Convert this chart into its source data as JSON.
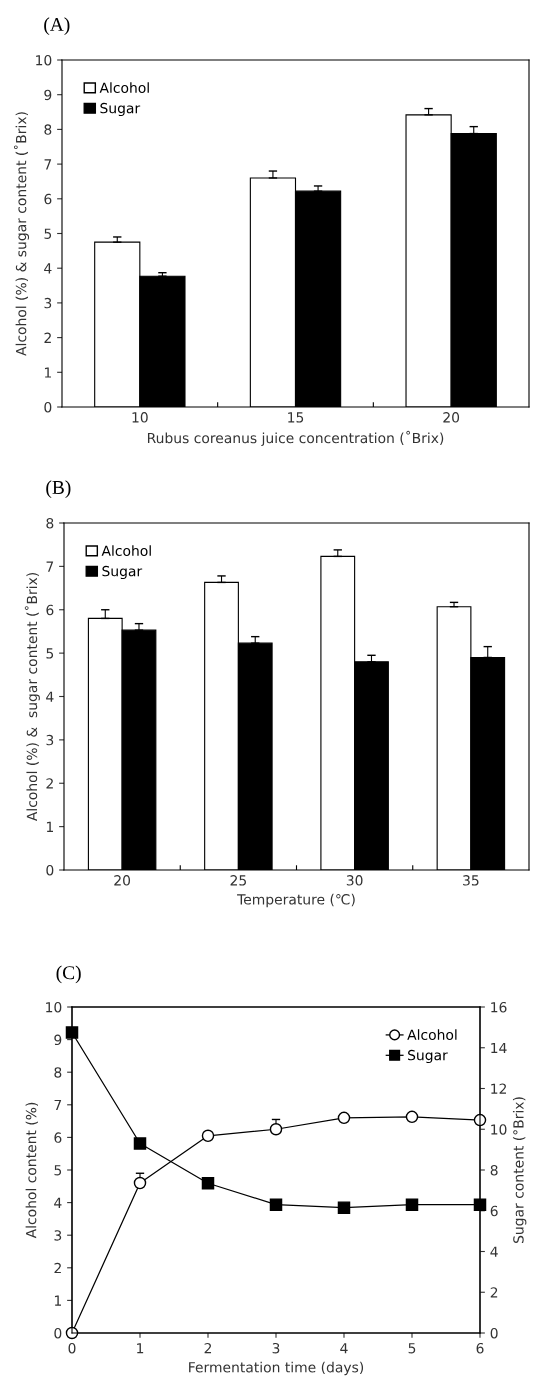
{
  "chart_data": [
    {
      "type": "bar",
      "title": "(A)",
      "xlabel": "Rubus coreanus juice concentration (˚Brix)",
      "ylabel": "Alcohol (%) & sugar content (˚Brix)",
      "categories": [
        "10",
        "15",
        "20"
      ],
      "ylim": [
        0,
        10
      ],
      "yticks": [
        0,
        1,
        2,
        3,
        4,
        5,
        6,
        7,
        8,
        9,
        10
      ],
      "legend": "top left",
      "grid": false,
      "series": [
        {
          "name": "Alcohol",
          "color": "#ffffff",
          "values": [
            4.75,
            6.6,
            8.42
          ],
          "errors": [
            [
              4.75,
              4.9
            ],
            [
              6.6,
              6.8
            ],
            [
              8.42,
              8.6
            ]
          ]
        },
        {
          "name": "Sugar",
          "color": "#000000",
          "values": [
            3.77,
            6.22,
            7.88
          ],
          "errors": [
            [
              3.77,
              3.87
            ],
            [
              6.22,
              6.37
            ],
            [
              7.88,
              8.08
            ]
          ]
        }
      ]
    },
    {
      "type": "bar",
      "title": "(B)",
      "xlabel": "Temperature (℃)",
      "ylabel": "Alcohol (%) &  sugar content (˚Brix)",
      "categories": [
        "20",
        "25",
        "30",
        "35"
      ],
      "ylim": [
        0,
        8
      ],
      "yticks": [
        0,
        1,
        2,
        3,
        4,
        5,
        6,
        7,
        8
      ],
      "legend": "top left",
      "grid": false,
      "series": [
        {
          "name": "Alcohol",
          "color": "#ffffff",
          "values": [
            5.8,
            6.63,
            7.23,
            6.07
          ],
          "errors": [
            [
              5.8,
              6.0
            ],
            [
              6.63,
              6.78
            ],
            [
              7.23,
              7.38
            ],
            [
              6.07,
              6.17
            ]
          ]
        },
        {
          "name": "Sugar",
          "color": "#000000",
          "values": [
            5.53,
            5.23,
            4.8,
            4.9
          ],
          "errors": [
            [
              5.53,
              5.68
            ],
            [
              5.23,
              5.38
            ],
            [
              4.8,
              4.95
            ],
            [
              4.9,
              5.15
            ]
          ]
        }
      ]
    },
    {
      "type": "line",
      "title": "(C)",
      "xlabel": "Fermentation time (days)",
      "ylabel": "Alcohol content (%)",
      "y2label": "Sugar content (°Brix)",
      "x": [
        0,
        1,
        2,
        3,
        4,
        5,
        6
      ],
      "xlim": [
        0,
        6
      ],
      "xticks": [
        0,
        1,
        2,
        3,
        4,
        5,
        6
      ],
      "ylim": [
        0,
        10
      ],
      "yticks": [
        0,
        1,
        2,
        3,
        4,
        5,
        6,
        7,
        8,
        9,
        10
      ],
      "y2lim": [
        0,
        16
      ],
      "y2ticks": [
        0,
        2,
        4,
        6,
        8,
        10,
        12,
        14,
        16
      ],
      "legend": "top right",
      "grid": false,
      "series": [
        {
          "name": "Alcohol",
          "color": "#000000",
          "marker": "circle",
          "values": [
            0,
            4.6,
            6.05,
            6.25,
            6.6,
            6.63,
            6.53
          ],
          "errors": [
            null,
            [
              4.6,
              4.9
            ],
            null,
            [
              6.25,
              6.55
            ],
            null,
            null,
            null
          ]
        },
        {
          "name": "Sugar",
          "color": "#000000",
          "marker": "square",
          "axis": "y2",
          "values": [
            14.75,
            9.3,
            7.35,
            6.3,
            6.15,
            6.3,
            6.3
          ]
        }
      ]
    }
  ]
}
